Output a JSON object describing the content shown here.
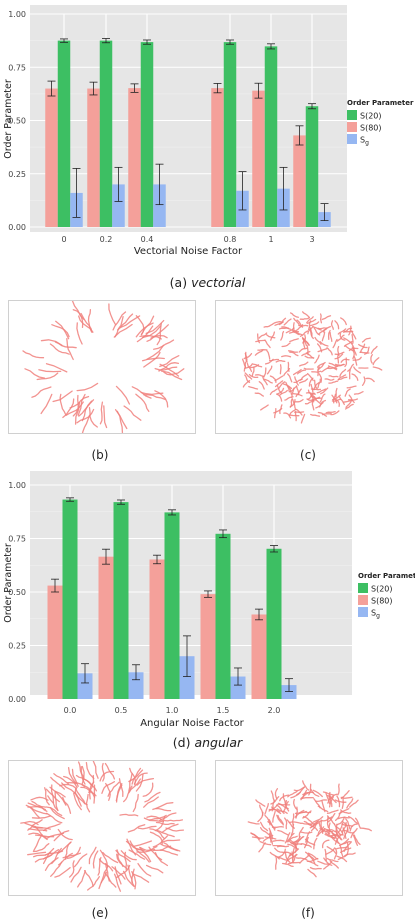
{
  "colors": {
    "s20": "#3dbf63",
    "s80": "#f4a09a",
    "sg": "#96b7f2",
    "panel_bg": "#e6e6e6",
    "fiber": "#f0807c"
  },
  "chart_data": [
    {
      "type": "bar",
      "categories": [
        "0",
        "0.2",
        "0.4",
        "0.8",
        "1",
        "3"
      ],
      "xlabel": "Vectorial Noise Factor",
      "ylabel": "Order Parameter",
      "ylim": [
        0,
        1.0
      ],
      "yticks": [
        "0.00",
        "0.25",
        "0.50",
        "0.75",
        "1.00"
      ],
      "legend": {
        "title": "Order Parameter",
        "position": "right"
      },
      "series": [
        {
          "name": "S(20)",
          "values": [
            0.875,
            0.875,
            0.868,
            0.868,
            0.848,
            0.567
          ],
          "errors": [
            0.008,
            0.01,
            0.01,
            0.01,
            0.012,
            0.012
          ]
        },
        {
          "name": "S(80)",
          "values": [
            0.65,
            0.65,
            0.652,
            0.652,
            0.64,
            0.43
          ],
          "errors": [
            0.035,
            0.03,
            0.02,
            0.022,
            0.035,
            0.045
          ]
        },
        {
          "name": "Sg",
          "values": [
            0.16,
            0.2,
            0.2,
            0.17,
            0.18,
            0.07
          ],
          "errors": [
            0.115,
            0.08,
            0.095,
            0.09,
            0.1,
            0.04
          ]
        }
      ]
    },
    {
      "type": "bar",
      "categories": [
        "0.0",
        "0.5",
        "1.0",
        "1.5",
        "2.0"
      ],
      "xlabel": "Angular Noise Factor",
      "ylabel": "Order Parameter",
      "ylim": [
        0,
        1.0
      ],
      "yticks": [
        "0.00",
        "0.25",
        "0.50",
        "0.75",
        "1.00"
      ],
      "legend": {
        "title": "Order Parameter",
        "position": "right"
      },
      "series": [
        {
          "name": "S(20)",
          "values": [
            0.932,
            0.92,
            0.872,
            0.772,
            0.702
          ],
          "errors": [
            0.008,
            0.01,
            0.012,
            0.018,
            0.015
          ]
        },
        {
          "name": "S(80)",
          "values": [
            0.53,
            0.665,
            0.652,
            0.49,
            0.395
          ],
          "errors": [
            0.03,
            0.035,
            0.02,
            0.015,
            0.025
          ]
        },
        {
          "name": "Sg",
          "values": [
            0.12,
            0.125,
            0.2,
            0.105,
            0.065
          ],
          "errors": [
            0.045,
            0.035,
            0.095,
            0.04,
            0.03
          ]
        }
      ]
    }
  ],
  "legend_sub_g": "g",
  "legend_s_prefix": "S",
  "captions": {
    "a_prefix": "(a) ",
    "a_italic": "vectorial",
    "b": "(b)",
    "c": "(c)",
    "d_prefix": "(d) ",
    "d_italic": "angular",
    "e": "(e)",
    "f": "(f)"
  }
}
